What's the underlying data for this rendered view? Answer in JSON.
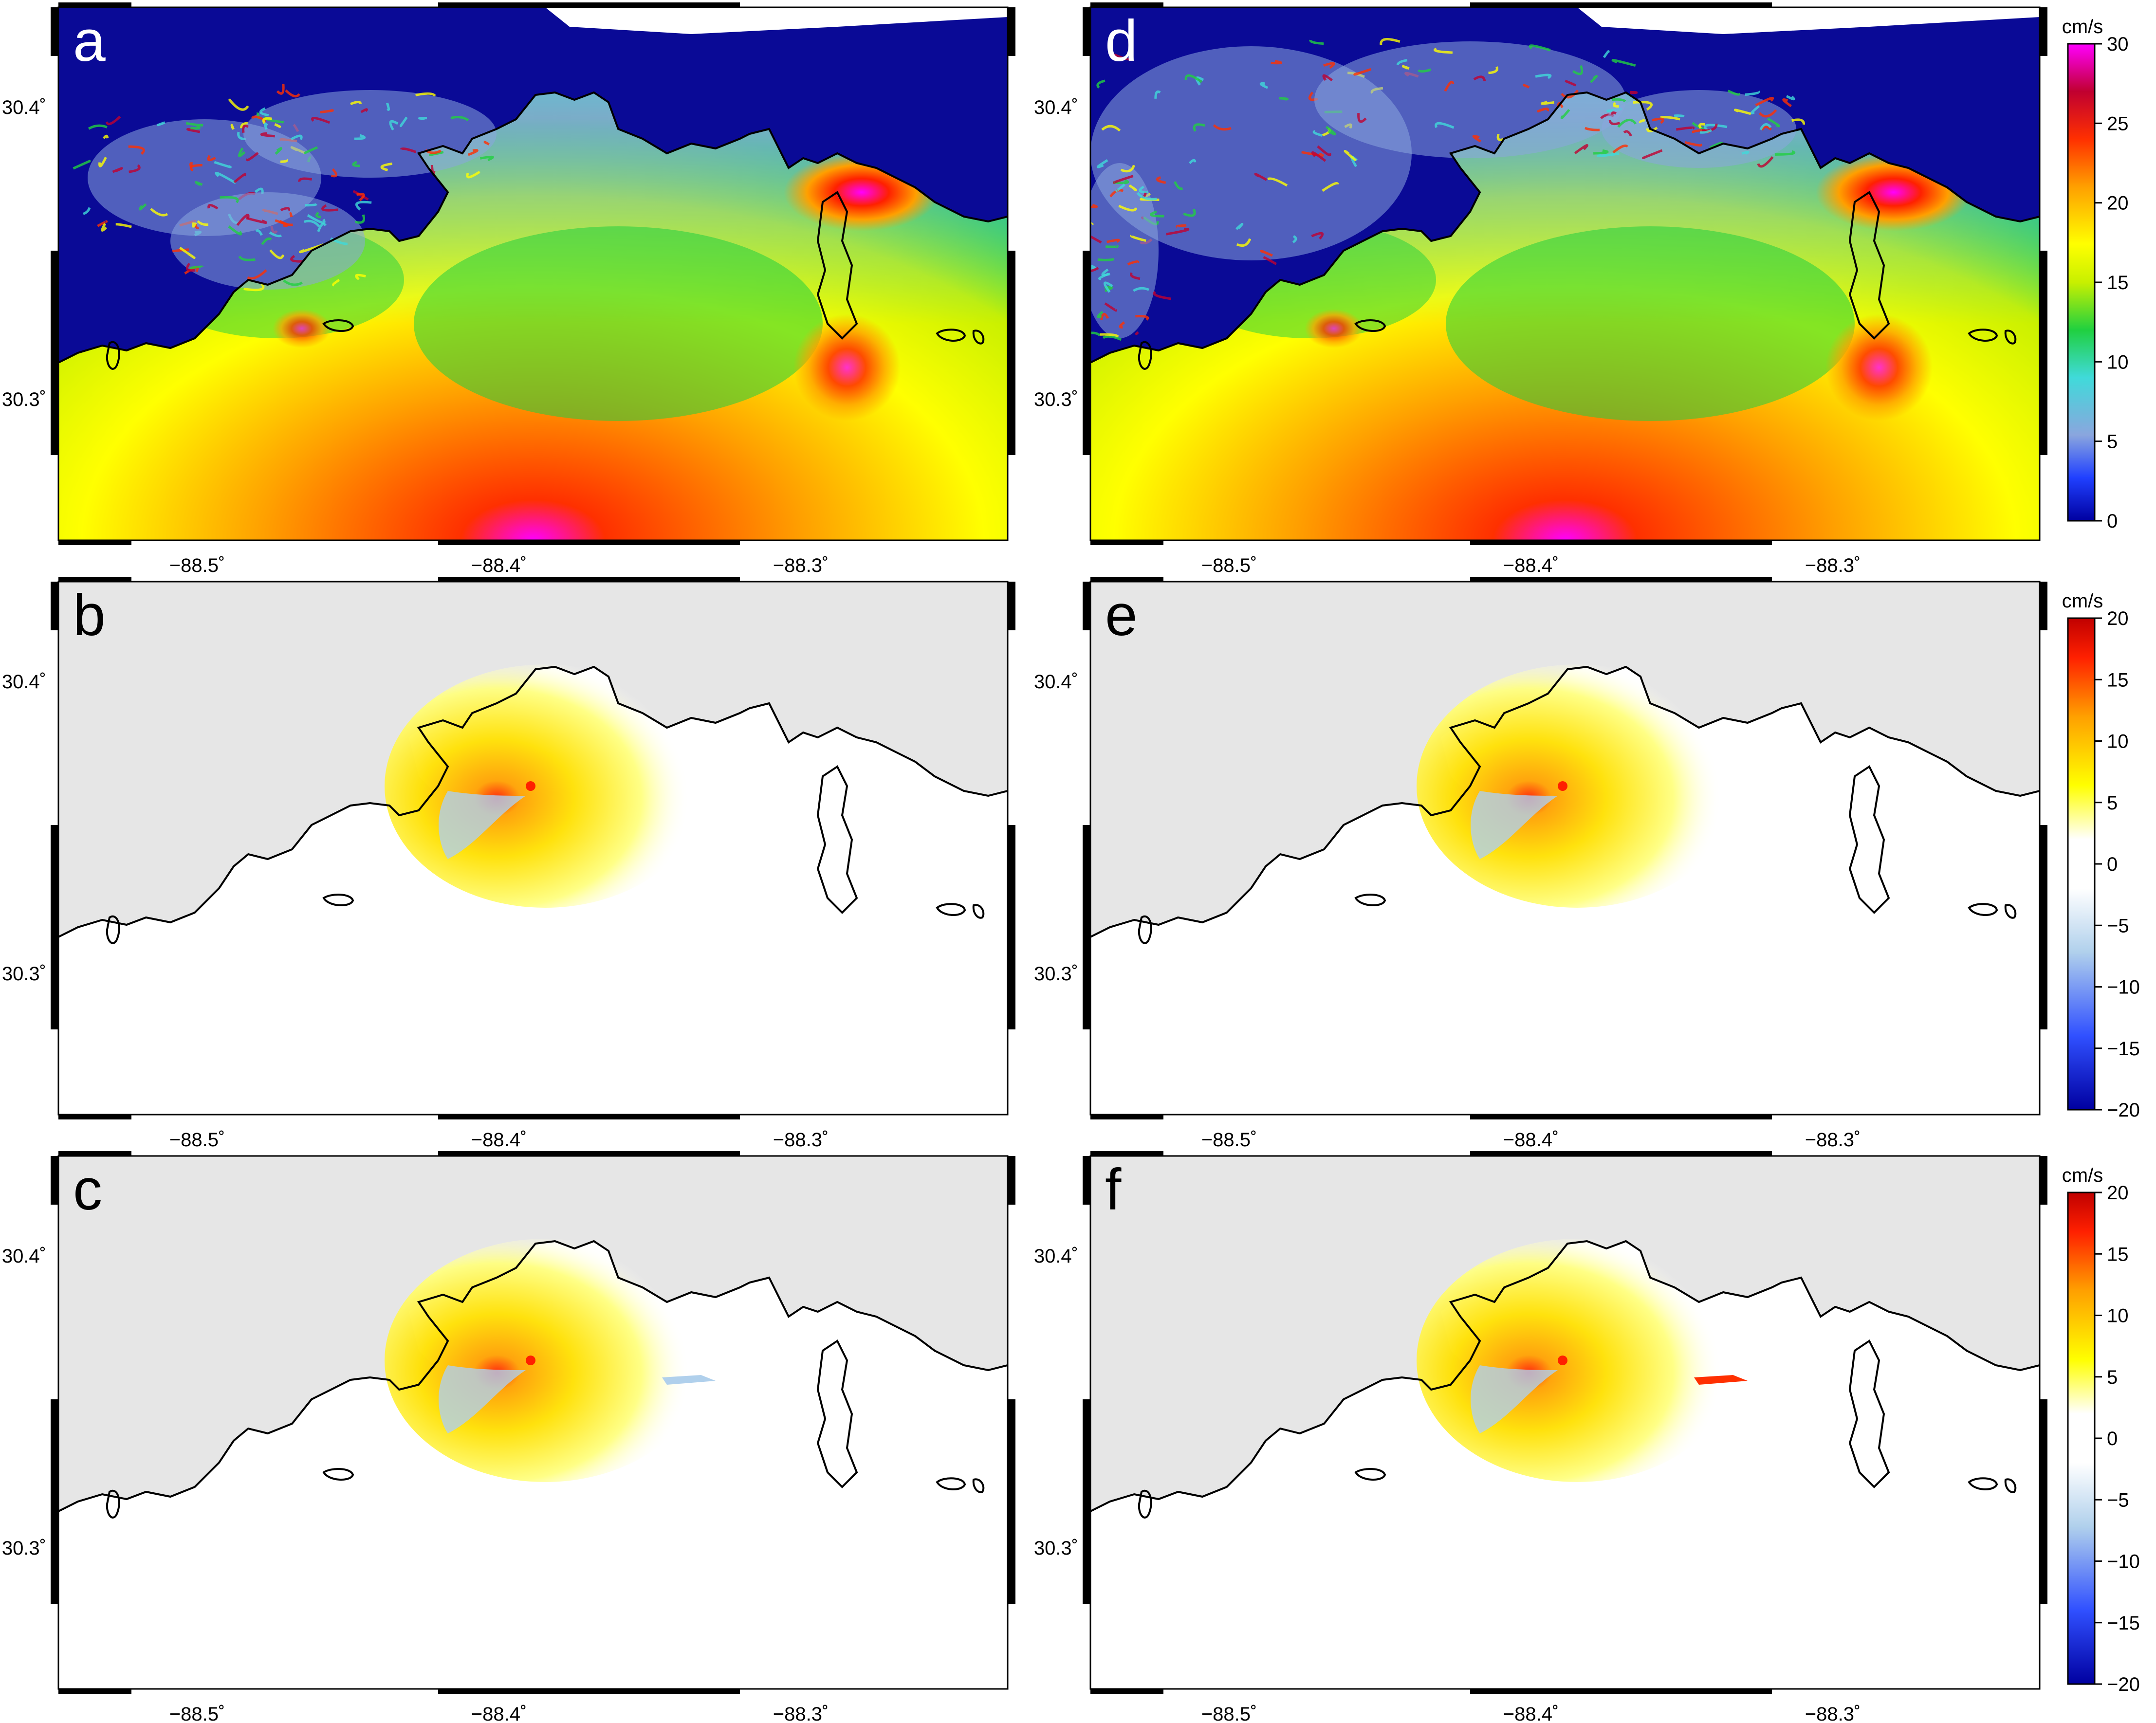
{
  "figure": {
    "panels": [
      {
        "letter": "a",
        "kind": "magnitude"
      },
      {
        "letter": "b",
        "kind": "difference"
      },
      {
        "letter": "c",
        "kind": "difference"
      },
      {
        "letter": "d",
        "kind": "magnitude"
      },
      {
        "letter": "e",
        "kind": "difference"
      },
      {
        "letter": "f",
        "kind": "difference"
      }
    ],
    "x_ticks": [
      "−88.5˚",
      "−88.4˚",
      "−88.3˚"
    ],
    "y_ticks": [
      "30.4˚",
      "30.3˚"
    ],
    "colorbars": [
      {
        "unit": "cm/s",
        "ticks": [
          "30",
          "25",
          "20",
          "15",
          "10",
          "5",
          "0"
        ],
        "scheme": "rainbow"
      },
      {
        "unit": "cm/s",
        "ticks": [
          "20",
          "15",
          "10",
          "5",
          "0",
          "−5",
          "−10",
          "−15",
          "−20"
        ],
        "scheme": "diverging"
      },
      {
        "unit": "cm/s",
        "ticks": [
          "20",
          "15",
          "10",
          "5",
          "0",
          "−5",
          "−10",
          "−15",
          "−20"
        ],
        "scheme": "diverging"
      }
    ],
    "colors": {
      "land": "#0a0a96",
      "grey_land": "#e6e6e6",
      "coast": "#000000",
      "speed_scale": [
        "#0000a0",
        "#2040ff",
        "#8aa6de",
        "#40dada",
        "#20d040",
        "#c8f000",
        "#ffff00",
        "#ffa000",
        "#ff3000",
        "#c00030",
        "#ff00ff"
      ],
      "diff_scale": [
        "#0000a0",
        "#3050ff",
        "#b0d0ec",
        "#ffffff",
        "#ffff00",
        "#ffa000",
        "#ff2000",
        "#c00000"
      ]
    }
  }
}
